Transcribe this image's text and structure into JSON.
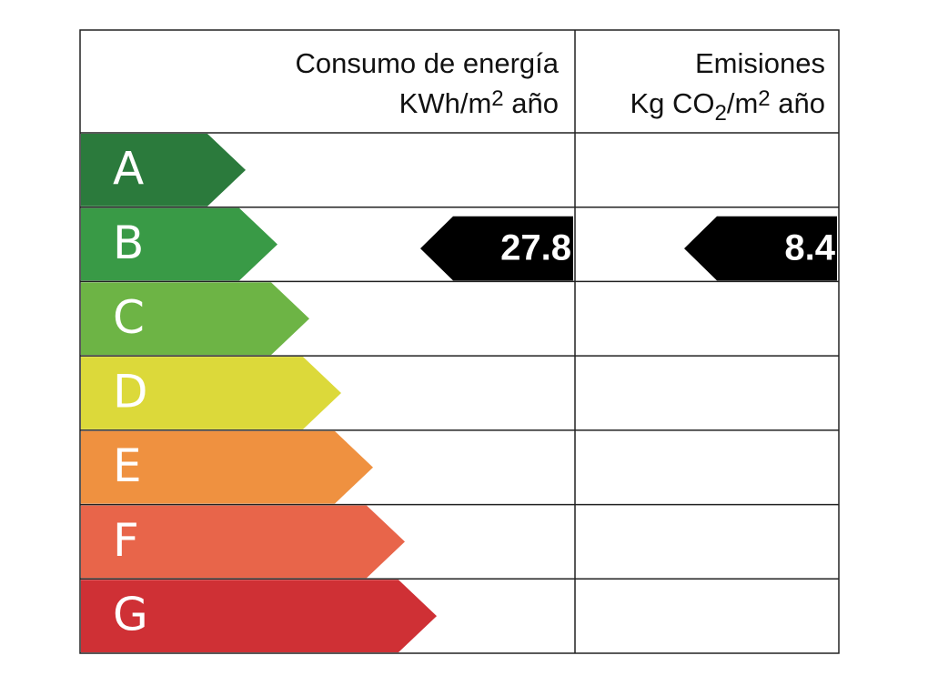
{
  "header": {
    "energy": {
      "title": "Consumo de energía",
      "unit": [
        "KWh/m",
        "2",
        " año"
      ]
    },
    "emissions": {
      "title": "Emisiones",
      "unit": [
        "Kg CO",
        "2",
        "/m",
        "2",
        " año"
      ]
    }
  },
  "ratings": [
    {
      "letter": "A",
      "color": "#2b7a3c"
    },
    {
      "letter": "B",
      "color": "#399a46"
    },
    {
      "letter": "C",
      "color": "#6db445"
    },
    {
      "letter": "D",
      "color": "#dcd93a"
    },
    {
      "letter": "E",
      "color": "#ef9140"
    },
    {
      "letter": "F",
      "color": "#e8654a"
    },
    {
      "letter": "G",
      "color": "#cf3035"
    }
  ],
  "energy": {
    "row": "B",
    "value": 27.8
  },
  "emissions": {
    "row": "B",
    "value": 8.4
  }
}
